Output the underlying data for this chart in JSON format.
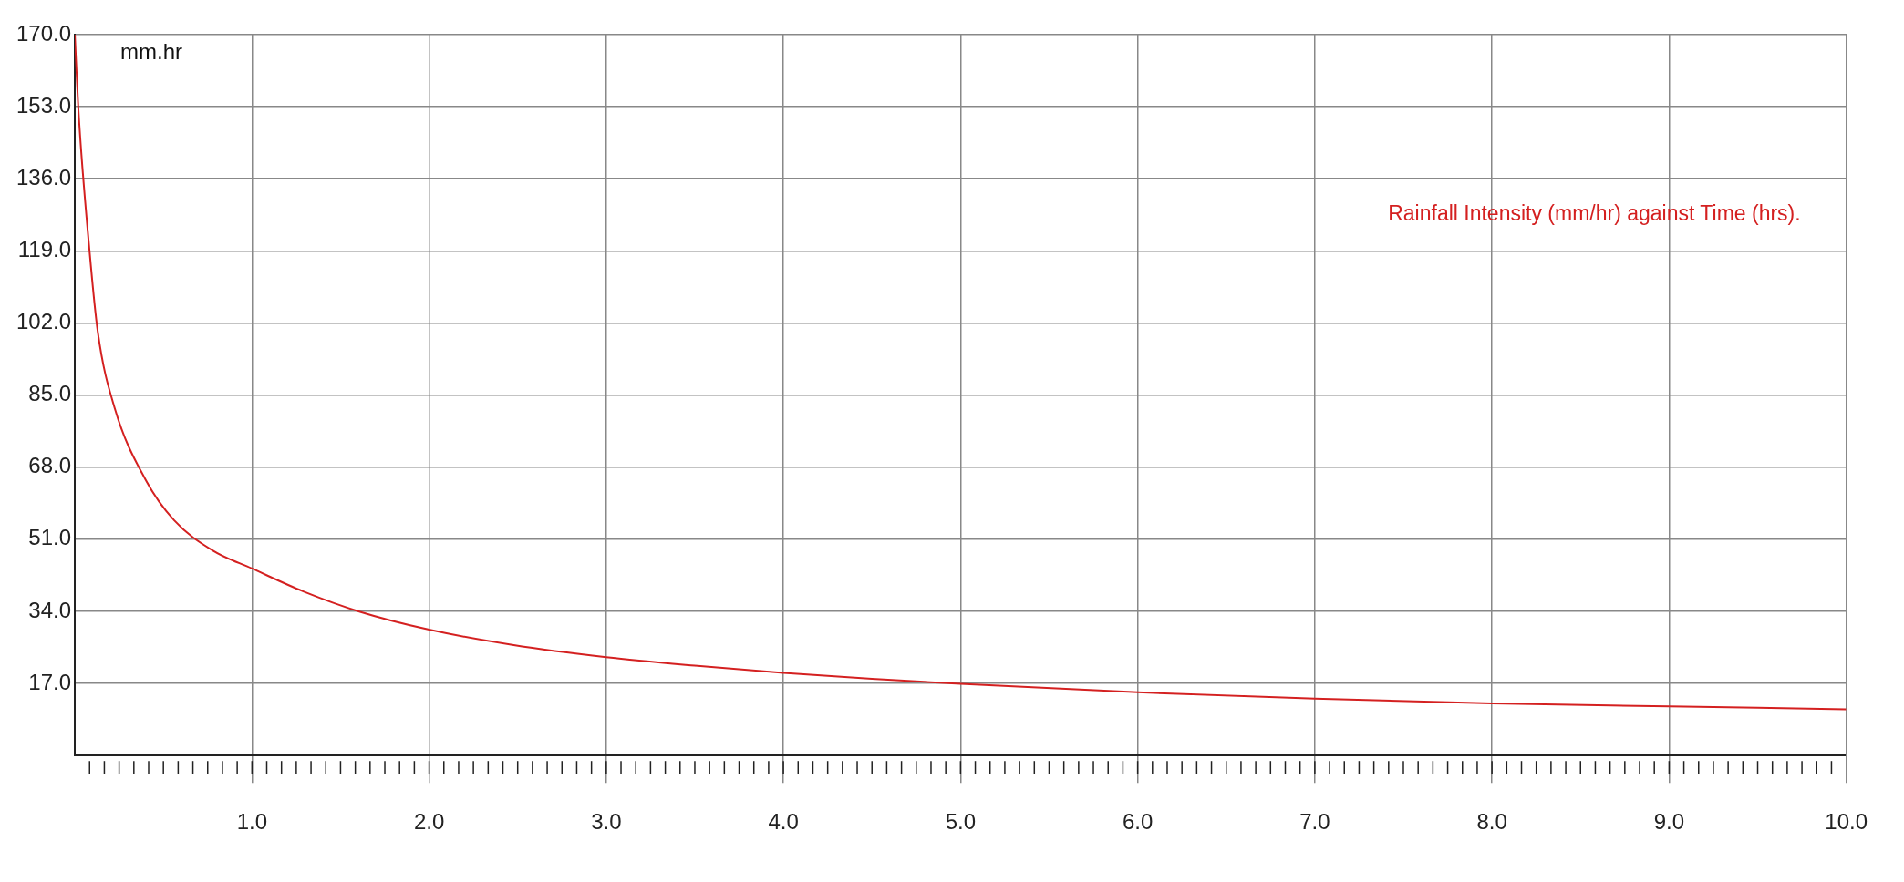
{
  "chart_data": {
    "type": "line",
    "title": "Rainfall Intensity (mm/hr) against Time (hrs).",
    "ylabel": "mm.hr",
    "x": [
      0,
      0.02,
      0.083,
      0.13,
      0.226,
      0.4,
      0.56,
      0.78,
      1.0,
      1.29,
      1.61,
      2.0,
      2.47,
      3.0,
      3.5,
      4.0,
      4.5,
      5.0,
      6.0,
      7.0,
      8.0,
      9.0,
      10.0
    ],
    "series": [
      {
        "color": "#d42020",
        "values": [
          170,
          152.5,
          119,
          99.8,
          81.8,
          65,
          55.5,
          48.3,
          44.1,
          38.7,
          33.9,
          29.7,
          26.1,
          23.2,
          21.2,
          19.5,
          18.1,
          16.9,
          14.9,
          13.4,
          12.3,
          11.6,
          10.9
        ]
      }
    ],
    "xlim": [
      0,
      10
    ],
    "xticks": [
      {
        "value": 1,
        "label": "1.0"
      },
      {
        "value": 2,
        "label": "2.0"
      },
      {
        "value": 3,
        "label": "3.0"
      },
      {
        "value": 4,
        "label": "4.0"
      },
      {
        "value": 5,
        "label": "5.0"
      },
      {
        "value": 6,
        "label": "6.0"
      },
      {
        "value": 7,
        "label": "7.0"
      },
      {
        "value": 8,
        "label": "8.0"
      },
      {
        "value": 9,
        "label": "9.0"
      },
      {
        "value": 10,
        "label": "10.0"
      }
    ],
    "ylim": [
      0,
      170
    ],
    "yticks": [
      {
        "value": 17,
        "label": "17.0"
      },
      {
        "value": 34,
        "label": "34.0"
      },
      {
        "value": 51,
        "label": "51.0"
      },
      {
        "value": 68,
        "label": "68.0"
      },
      {
        "value": 85,
        "label": "85.0"
      },
      {
        "value": 102,
        "label": "102.0"
      },
      {
        "value": 119,
        "label": "119.0"
      },
      {
        "value": 136,
        "label": "136.0"
      },
      {
        "value": 153,
        "label": "153.0"
      },
      {
        "value": 170,
        "label": "170.0"
      }
    ],
    "grid": true,
    "legend": false,
    "marker": "none",
    "line_style": "solid"
  }
}
